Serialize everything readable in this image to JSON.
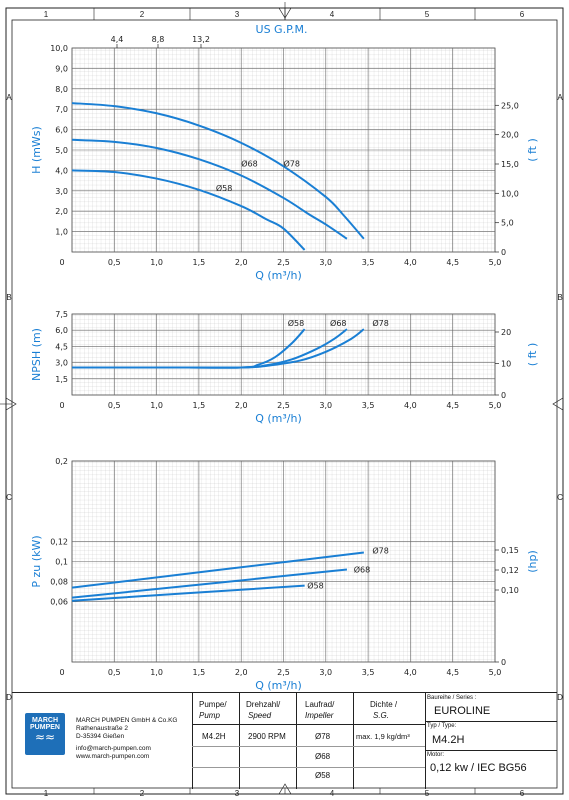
{
  "frame": {
    "col_labels": [
      "1",
      "2",
      "3",
      "4",
      "5",
      "6"
    ],
    "row_labels": [
      "A",
      "B",
      "C",
      "D"
    ]
  },
  "chart_data": [
    {
      "type": "line",
      "title": "",
      "xlabel": "Q (m³/h)",
      "ylabel": "H (mWs)",
      "ylabel_right": "( ft )",
      "xlabel_top": "US G.P.M.",
      "top_ticks": [
        "4,4",
        "8,8",
        "13,2"
      ],
      "xlim": [
        0,
        5
      ],
      "ylim": [
        0,
        10
      ],
      "x_ticks": [
        "0",
        "0,5",
        "1,0",
        "1,5",
        "2,0",
        "2,5",
        "3,0",
        "3,5",
        "4,0",
        "4,5",
        "5,0"
      ],
      "y_ticks": [
        "1,0",
        "2,0",
        "3,0",
        "4,0",
        "5,0",
        "6,0",
        "7,0",
        "8,0",
        "9,0",
        "10,0"
      ],
      "y_ticks_right": [
        "0",
        "5,0",
        "10,0",
        "15,0",
        "20,0",
        "25,0"
      ],
      "series": [
        {
          "name": "Ø78",
          "x": [
            0,
            0.5,
            1.0,
            1.5,
            2.0,
            2.5,
            3.0,
            3.2,
            3.45
          ],
          "y": [
            7.3,
            7.15,
            6.8,
            6.2,
            5.35,
            4.2,
            2.7,
            1.85,
            0.65
          ]
        },
        {
          "name": "Ø68",
          "x": [
            0,
            0.5,
            1.0,
            1.5,
            2.0,
            2.5,
            2.8,
            3.0,
            3.25
          ],
          "y": [
            5.5,
            5.4,
            5.1,
            4.55,
            3.75,
            2.65,
            1.85,
            1.35,
            0.65
          ]
        },
        {
          "name": "Ø58",
          "x": [
            0,
            0.5,
            1.0,
            1.5,
            2.0,
            2.3,
            2.5,
            2.75
          ],
          "y": [
            4.0,
            3.92,
            3.6,
            3.05,
            2.25,
            1.6,
            1.15,
            0.1
          ]
        }
      ],
      "label_points": [
        {
          "text": "Ø78",
          "x": 2.5,
          "y": 4.2
        },
        {
          "text": "Ø68",
          "x": 2.0,
          "y": 4.2
        },
        {
          "text": "Ø58",
          "x": 1.7,
          "y": 3.0
        }
      ]
    },
    {
      "type": "line",
      "title": "",
      "xlabel": "Q (m³/h)",
      "ylabel": "NPSH (m)",
      "ylabel_right": "( ft )",
      "xlim": [
        0,
        5
      ],
      "ylim": [
        0,
        7.5
      ],
      "x_ticks": [
        "0",
        "0,5",
        "1,0",
        "1,5",
        "2,0",
        "2,5",
        "3,0",
        "3,5",
        "4,0",
        "4,5",
        "5,0"
      ],
      "y_ticks": [
        "1,5",
        "3,0",
        "4,5",
        "6,0",
        "7,5"
      ],
      "y_ticks_right": [
        "0",
        "10",
        "20"
      ],
      "series": [
        {
          "name": "Ø58",
          "x": [
            0,
            1.0,
            2.0,
            2.2,
            2.4,
            2.6,
            2.75
          ],
          "y": [
            2.55,
            2.55,
            2.55,
            2.8,
            3.5,
            4.8,
            6.1
          ]
        },
        {
          "name": "Ø68",
          "x": [
            0,
            1.0,
            2.0,
            2.3,
            2.6,
            2.9,
            3.1,
            3.25
          ],
          "y": [
            2.55,
            2.55,
            2.55,
            2.75,
            3.3,
            4.3,
            5.2,
            6.1
          ]
        },
        {
          "name": "Ø78",
          "x": [
            0,
            1.0,
            2.0,
            2.3,
            2.7,
            3.0,
            3.3,
            3.45
          ],
          "y": [
            2.55,
            2.55,
            2.55,
            2.7,
            3.2,
            4.0,
            5.2,
            6.1
          ]
        }
      ],
      "label_points": [
        {
          "text": "Ø58",
          "x": 2.55,
          "y": 6.4
        },
        {
          "text": "Ø68",
          "x": 3.05,
          "y": 6.4
        },
        {
          "text": "Ø78",
          "x": 3.55,
          "y": 6.4
        }
      ]
    },
    {
      "type": "line",
      "title": "",
      "xlabel": "Q (m³/h)",
      "ylabel": "P zu (kW)",
      "ylabel_right": "(hp)",
      "xlim": [
        0,
        5
      ],
      "ylim": [
        0,
        0.2
      ],
      "x_ticks": [
        "0",
        "0,5",
        "1,0",
        "1,5",
        "2,0",
        "2,5",
        "3,0",
        "3,5",
        "4,0",
        "4,5",
        "5,0"
      ],
      "y_ticks": [
        "0,06",
        "0,08",
        "0,1",
        "0,12",
        "0,2"
      ],
      "y_ticks_right": [
        "0",
        "0,10",
        "0,12",
        "0,15"
      ],
      "series": [
        {
          "name": "Ø78",
          "x": [
            0,
            3.45
          ],
          "y": [
            0.074,
            0.109
          ]
        },
        {
          "name": "Ø68",
          "x": [
            0,
            3.25
          ],
          "y": [
            0.064,
            0.092
          ]
        },
        {
          "name": "Ø58",
          "x": [
            0,
            2.75
          ],
          "y": [
            0.061,
            0.076
          ]
        }
      ],
      "label_points": [
        {
          "text": "Ø78",
          "x": 3.55,
          "y": 0.108
        },
        {
          "text": "Ø68",
          "x": 3.33,
          "y": 0.089
        },
        {
          "text": "Ø58",
          "x": 2.78,
          "y": 0.073
        }
      ]
    }
  ],
  "titleblock": {
    "company": "MARCH PUMPEN GmbH & Co.KG",
    "street": "Rathenaustraße 2",
    "city": "D-35394 Gießen",
    "email": "info@march-pumpen.com",
    "web": "www.march-pumpen.com",
    "logo_line1": "MARCH",
    "logo_line2": "PUMPEN",
    "pumpe_de": "Pumpe/",
    "pumpe_en": "Pump",
    "pumpe_val": "M4.2H",
    "drehzahl_de": "Drehzahl/",
    "drehzahl_en": "Speed",
    "drehzahl_val": "2900 RPM",
    "laufrad_de": "Laufrad/",
    "laufrad_en": "Impeller",
    "laufrad_vals": [
      "Ø78",
      "Ø68",
      "Ø58"
    ],
    "dichte_de": "Dichte /",
    "dichte_en": "S.G.",
    "dichte_val": "max. 1,9 kg/dm³",
    "baureihe_label": "Baureihe / Series :",
    "baureihe_val": "EUROLINE",
    "typ_label": "Typ / Type:",
    "typ_val": "M4.2H",
    "motor_label": "Motor:",
    "motor_val": "0,12 kw / IEC BG56"
  }
}
